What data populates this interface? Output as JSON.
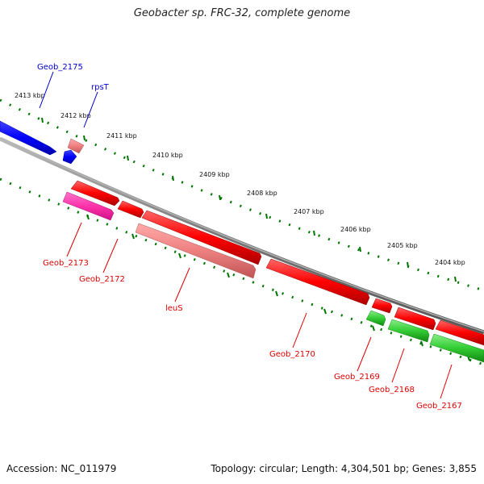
{
  "title": "Geobacter sp. FRC-32, complete genome",
  "footer": {
    "accession": "Accession: NC_011979",
    "summary": "Topology: circular; Length: 4,304,501 bp; Genes: 3,855"
  },
  "scale_labels": [
    "2413 kbp",
    "2412 kbp",
    "2411 kbp",
    "2410 kbp",
    "2409 kbp",
    "2408 kbp",
    "2407 kbp",
    "2406 kbp",
    "2405 kbp",
    "2404 kbp"
  ],
  "genes": {
    "forward": [
      {
        "label": "Geob_2175",
        "color": "#0000ee"
      },
      {
        "label": "rpsT",
        "color": "#0000ee"
      }
    ],
    "reverse": [
      {
        "label": "Geob_2173",
        "color": "#dd0000"
      },
      {
        "label": "Geob_2172",
        "color": "#dd0000"
      },
      {
        "label": "leuS",
        "color": "#dd0000"
      },
      {
        "label": "Geob_2170",
        "color": "#dd0000"
      },
      {
        "label": "Geob_2169",
        "color": "#dd0000"
      },
      {
        "label": "Geob_2168",
        "color": "#dd0000"
      },
      {
        "label": "Geob_2167",
        "color": "#dd0000"
      }
    ]
  },
  "colors": {
    "backbone": "#8a8a8a",
    "tick": "#007700",
    "forward_gene": "#0000ff",
    "reverse_gene": "#ff0000",
    "rna_gene": "#ee7777",
    "pink_gene": "#ff33aa",
    "green_gene": "#33cc33"
  }
}
